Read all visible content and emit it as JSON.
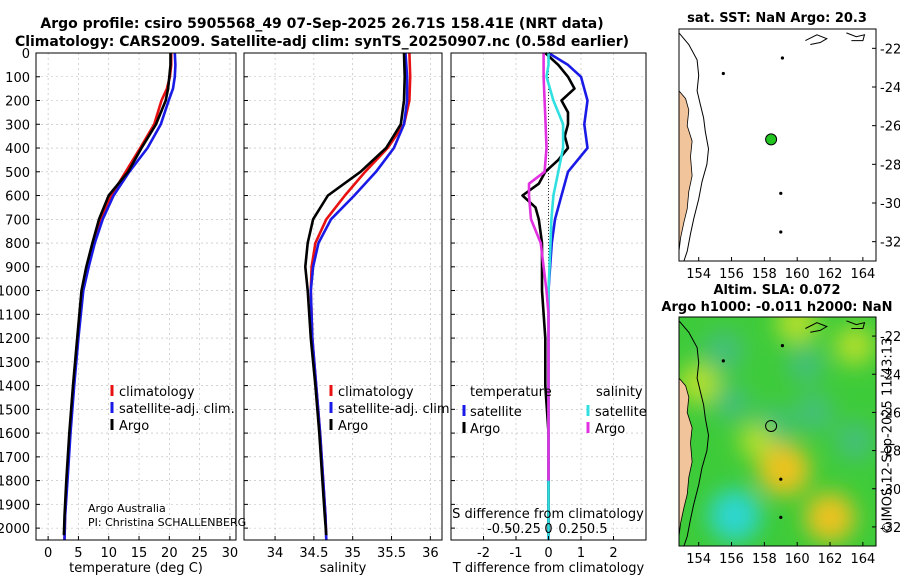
{
  "header": {
    "title_line1": "Argo profile: csiro 5905568_49 07-Sep-2025 26.71S 158.41E (NRT data)",
    "title_line2": "Climatology: CARS2009. Satellite-adj clim: synTS_20250907.nc (0.58d earlier)"
  },
  "credits": {
    "org": "Argo Australia",
    "pi": "PI: Christina SCHALLENBERG",
    "imos": "©IMOS 12-Sep-2025 11:43:13"
  },
  "colors": {
    "climatology": "#e81010",
    "satellite_clim": "#1a1ae6",
    "argo": "#000000",
    "sat_salinity": "#30e0e0",
    "argo_salinity": "#e030e0",
    "land": "#f2c49b"
  },
  "chart_data": [
    {
      "type": "line",
      "id": "temperature",
      "xlabel": "temperature (deg C)",
      "ylabel": "",
      "xlim": [
        -2,
        31
      ],
      "ylim": [
        2050,
        0
      ],
      "xticks": [
        0,
        5,
        10,
        15,
        20,
        25,
        30
      ],
      "yticks": [
        0,
        100,
        200,
        300,
        400,
        500,
        600,
        700,
        800,
        900,
        1000,
        1100,
        1200,
        1300,
        1400,
        1500,
        1600,
        1700,
        1800,
        1900,
        2000
      ],
      "legend": [
        "climatology",
        "satellite-adj. clim.",
        "Argo"
      ],
      "series": [
        {
          "name": "climatology",
          "color": "#e81010",
          "points": [
            [
              20.3,
              0
            ],
            [
              20.3,
              50
            ],
            [
              20.1,
              100
            ],
            [
              19.6,
              150
            ],
            [
              18.7,
              200
            ],
            [
              17.5,
              300
            ],
            [
              15.2,
              400
            ],
            [
              12.8,
              500
            ],
            [
              10.4,
              600
            ],
            [
              8.8,
              700
            ],
            [
              7.6,
              800
            ],
            [
              6.6,
              900
            ],
            [
              5.7,
              1000
            ],
            [
              4.9,
              1200
            ],
            [
              4.2,
              1400
            ],
            [
              3.6,
              1600
            ],
            [
              3.1,
              1800
            ],
            [
              2.8,
              1950
            ],
            [
              2.7,
              2050
            ]
          ]
        },
        {
          "name": "satellite-adj. clim.",
          "color": "#1a1ae6",
          "points": [
            [
              20.9,
              0
            ],
            [
              21.0,
              50
            ],
            [
              20.9,
              100
            ],
            [
              20.6,
              150
            ],
            [
              19.9,
              200
            ],
            [
              18.6,
              300
            ],
            [
              16.4,
              400
            ],
            [
              13.4,
              500
            ],
            [
              10.8,
              600
            ],
            [
              9.0,
              700
            ],
            [
              7.7,
              800
            ],
            [
              6.7,
              900
            ],
            [
              5.8,
              1000
            ],
            [
              5.0,
              1200
            ],
            [
              4.3,
              1400
            ],
            [
              3.7,
              1600
            ],
            [
              3.2,
              1800
            ],
            [
              2.8,
              1950
            ],
            [
              2.7,
              2050
            ]
          ]
        },
        {
          "name": "Argo",
          "color": "#000000",
          "points": [
            [
              20.2,
              0
            ],
            [
              20.2,
              50
            ],
            [
              20.0,
              100
            ],
            [
              19.8,
              150
            ],
            [
              19.4,
              200
            ],
            [
              17.8,
              300
            ],
            [
              15.4,
              400
            ],
            [
              13.2,
              500
            ],
            [
              10.0,
              600
            ],
            [
              8.4,
              700
            ],
            [
              7.3,
              800
            ],
            [
              6.3,
              900
            ],
            [
              5.5,
              1000
            ],
            [
              4.8,
              1200
            ],
            [
              4.1,
              1400
            ],
            [
              3.5,
              1600
            ],
            [
              3.0,
              1800
            ],
            [
              2.7,
              1950
            ],
            [
              2.6,
              2030
            ]
          ]
        }
      ]
    },
    {
      "type": "line",
      "id": "salinity",
      "xlabel": "salinity",
      "xlim": [
        33.6,
        36.15
      ],
      "ylim": [
        2050,
        0
      ],
      "xticks": [
        34,
        34.5,
        35,
        35.5,
        36
      ],
      "legend": [
        "climatology",
        "satellite-adj. clim.",
        "Argo"
      ],
      "series": [
        {
          "name": "climatology",
          "color": "#e81010",
          "points": [
            [
              35.73,
              0
            ],
            [
              35.74,
              100
            ],
            [
              35.73,
              200
            ],
            [
              35.66,
              300
            ],
            [
              35.45,
              400
            ],
            [
              35.16,
              500
            ],
            [
              34.9,
              600
            ],
            [
              34.66,
              700
            ],
            [
              34.52,
              800
            ],
            [
              34.47,
              900
            ],
            [
              34.46,
              1000
            ],
            [
              34.48,
              1200
            ],
            [
              34.53,
              1400
            ],
            [
              34.58,
              1600
            ],
            [
              34.62,
              1800
            ],
            [
              34.65,
              1950
            ],
            [
              34.66,
              2050
            ]
          ]
        },
        {
          "name": "satellite-adj. clim.",
          "color": "#1a1ae6",
          "points": [
            [
              35.68,
              0
            ],
            [
              35.7,
              100
            ],
            [
              35.7,
              200
            ],
            [
              35.66,
              300
            ],
            [
              35.53,
              400
            ],
            [
              35.3,
              500
            ],
            [
              35.02,
              600
            ],
            [
              34.72,
              700
            ],
            [
              34.56,
              800
            ],
            [
              34.49,
              900
            ],
            [
              34.46,
              1000
            ],
            [
              34.48,
              1200
            ],
            [
              34.53,
              1400
            ],
            [
              34.58,
              1600
            ],
            [
              34.62,
              1800
            ],
            [
              34.65,
              1950
            ],
            [
              34.66,
              2050
            ]
          ]
        },
        {
          "name": "Argo",
          "color": "#000000",
          "points": [
            [
              35.66,
              0
            ],
            [
              35.67,
              100
            ],
            [
              35.66,
              200
            ],
            [
              35.62,
              300
            ],
            [
              35.43,
              400
            ],
            [
              35.1,
              500
            ],
            [
              34.68,
              600
            ],
            [
              34.49,
              700
            ],
            [
              34.42,
              800
            ],
            [
              34.39,
              900
            ],
            [
              34.42,
              1000
            ],
            [
              34.46,
              1200
            ],
            [
              34.52,
              1400
            ],
            [
              34.57,
              1600
            ],
            [
              34.61,
              1800
            ],
            [
              34.64,
              1950
            ],
            [
              34.66,
              2030
            ]
          ]
        }
      ]
    },
    {
      "type": "line",
      "id": "difference",
      "xlabel": "T difference from climatology",
      "top_xlabel": "S difference from climatology",
      "xlim": [
        -3,
        3
      ],
      "ylim": [
        2050,
        0
      ],
      "xticks": [
        -2,
        -1,
        0,
        1,
        2
      ],
      "top_xticks": [
        -0.5,
        -0.25,
        0,
        0.25,
        0.5
      ],
      "top_tick_labels": [
        "-0.5",
        "-0.25",
        "0",
        "0.25",
        "0.5"
      ],
      "legend_groups": {
        "temperature": [
          "satellite",
          "Argo"
        ],
        "salinity": [
          "satellite",
          "Argo"
        ]
      },
      "series": [
        {
          "name": "T satellite",
          "color": "#1a1ae6",
          "points": [
            [
              0,
              0
            ],
            [
              0.6,
              50
            ],
            [
              1.0,
              100
            ],
            [
              1.2,
              200
            ],
            [
              1.1,
              300
            ],
            [
              1.2,
              400
            ],
            [
              0.6,
              500
            ],
            [
              0.4,
              600
            ],
            [
              0.2,
              700
            ],
            [
              0.1,
              800
            ],
            [
              0.05,
              900
            ],
            [
              0,
              1000
            ],
            [
              0,
              2050
            ]
          ]
        },
        {
          "name": "T Argo",
          "color": "#000000",
          "points": [
            [
              -0.1,
              0
            ],
            [
              0.3,
              50
            ],
            [
              0.6,
              100
            ],
            [
              0.8,
              150
            ],
            [
              0.4,
              200
            ],
            [
              0.6,
              250
            ],
            [
              0.6,
              300
            ],
            [
              0.5,
              350
            ],
            [
              0.6,
              400
            ],
            [
              0.3,
              450
            ],
            [
              -0.1,
              500
            ],
            [
              -0.3,
              550
            ],
            [
              -0.8,
              600
            ],
            [
              -0.4,
              650
            ],
            [
              -0.3,
              700
            ],
            [
              -0.2,
              800
            ],
            [
              -0.2,
              900
            ],
            [
              -0.2,
              1000
            ],
            [
              -0.1,
              1200
            ],
            [
              -0.1,
              1400
            ],
            [
              0,
              1600
            ],
            [
              0,
              1800
            ],
            [
              0,
              2030
            ]
          ]
        },
        {
          "name": "S satellite",
          "color": "#30e0e0",
          "points": [
            [
              0,
              0
            ],
            [
              0,
              50
            ],
            [
              -0.02,
              100
            ],
            [
              0.05,
              200
            ],
            [
              0.15,
              300
            ],
            [
              0.15,
              400
            ],
            [
              0.1,
              500
            ],
            [
              0.05,
              600
            ],
            [
              0.03,
              700
            ],
            [
              0.02,
              800
            ],
            [
              0.01,
              900
            ],
            [
              0,
              1000
            ],
            [
              0,
              2050
            ]
          ]
        },
        {
          "name": "S Argo",
          "color": "#e030e0",
          "points": [
            [
              -0.05,
              0
            ],
            [
              -0.05,
              100
            ],
            [
              -0.04,
              200
            ],
            [
              -0.03,
              300
            ],
            [
              -0.02,
              400
            ],
            [
              -0.04,
              500
            ],
            [
              -0.2,
              550
            ],
            [
              -0.2,
              600
            ],
            [
              -0.18,
              700
            ],
            [
              -0.08,
              800
            ],
            [
              -0.05,
              900
            ],
            [
              -0.02,
              1000
            ],
            [
              0,
              1100
            ],
            [
              0,
              1200
            ],
            [
              0,
              1400
            ],
            [
              0,
              1600
            ],
            [
              0,
              1800
            ]
          ]
        }
      ]
    },
    {
      "type": "scatter",
      "id": "sst-map",
      "title": "sat. SST: NaN Argo: 20.3",
      "xlim": [
        152.8,
        164.8
      ],
      "ylim": [
        -33,
        -21
      ],
      "xticks": [
        154,
        156,
        158,
        160,
        162,
        164
      ],
      "yticks": [
        -22,
        -24,
        -26,
        -28,
        -30,
        -32
      ],
      "float_position": [
        158.41,
        -26.71
      ],
      "float_color": "#22c422"
    },
    {
      "type": "heatmap",
      "id": "sla-map",
      "title_line1": "Altim. SLA: 0.072",
      "title_line2": "Argo h1000: -0.011 h2000: NaN",
      "xlim": [
        152.8,
        164.8
      ],
      "ylim": [
        -33,
        -21
      ],
      "xticks": [
        154,
        156,
        158,
        160,
        162,
        164
      ],
      "yticks": [
        -22,
        -24,
        -26,
        -28,
        -30,
        -32
      ],
      "float_position": [
        158.41,
        -26.71
      ],
      "anomaly_blobs": [
        {
          "lon": 155.5,
          "lat": -22.8,
          "value": -0.6
        },
        {
          "lon": 160.5,
          "lat": -23.5,
          "value": -0.4
        },
        {
          "lon": 156.0,
          "lat": -25.5,
          "value": -0.4
        },
        {
          "lon": 158.5,
          "lat": -26.7,
          "value": -0.5
        },
        {
          "lon": 161.0,
          "lat": -26.0,
          "value": -0.5
        },
        {
          "lon": 163.5,
          "lat": -27.5,
          "value": -0.5
        },
        {
          "lon": 156.2,
          "lat": -31.4,
          "value": -1.0
        },
        {
          "lon": 159.2,
          "lat": -29.0,
          "value": 1.0
        },
        {
          "lon": 162.0,
          "lat": -31.5,
          "value": 0.9
        },
        {
          "lon": 154.0,
          "lat": -24.5,
          "value": 0.6
        },
        {
          "lon": 160.0,
          "lat": -21.3,
          "value": 0.6
        },
        {
          "lon": 157.5,
          "lat": -27.5,
          "value": 0.3
        },
        {
          "lon": 163.5,
          "lat": -22.5,
          "value": 0.5
        }
      ]
    }
  ]
}
